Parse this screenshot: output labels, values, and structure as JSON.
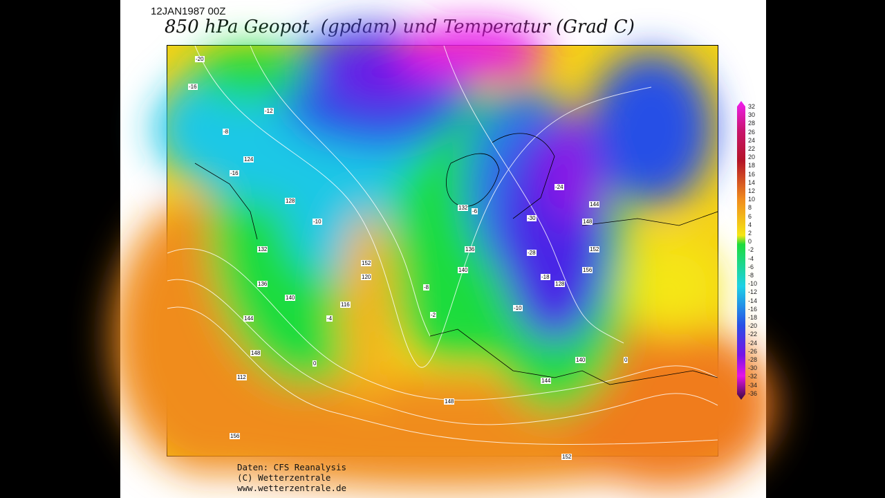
{
  "header": {
    "date": "12JAN1987 00Z",
    "title": "850 hPa Geopot. (gpdam) und  Temperatur (Grad C)"
  },
  "map": {
    "colors": {
      "warm_orange": "#f08c1e",
      "yellow": "#f5e614",
      "green": "#1edc3c",
      "cyan": "#1ed2e6",
      "blue": "#2850e6",
      "purple": "#7814e6",
      "magenta": "#e614e6",
      "dark_red": "#a01428"
    },
    "contour_labels": [
      "-20",
      "-16",
      "-8",
      "-12",
      "-16",
      "-10",
      "124",
      "128",
      "132",
      "136",
      "140",
      "144",
      "148",
      "152",
      "120",
      "112",
      "116",
      "-4",
      "-2",
      "0",
      "-6",
      "-28",
      "-24",
      "-30",
      "-18",
      "144",
      "148",
      "152",
      "156",
      "132",
      "136",
      "140",
      "-8",
      "128",
      "0",
      "-10",
      "148",
      "144",
      "140",
      "156",
      "152"
    ]
  },
  "colorbar": {
    "ticks": [
      "32",
      "30",
      "28",
      "26",
      "24",
      "22",
      "20",
      "18",
      "16",
      "14",
      "12",
      "10",
      "8",
      "6",
      "4",
      "2",
      "0",
      "-2",
      "-4",
      "-6",
      "-8",
      "-10",
      "-12",
      "-14",
      "-16",
      "-18",
      "-20",
      "-22",
      "-24",
      "-26",
      "-28",
      "-30",
      "-32",
      "-34",
      "-36"
    ]
  },
  "footer": {
    "line1": "Daten: CFS Reanalysis",
    "line2": "(C) Wetterzentrale",
    "line3": "www.wetterzentrale.de"
  }
}
